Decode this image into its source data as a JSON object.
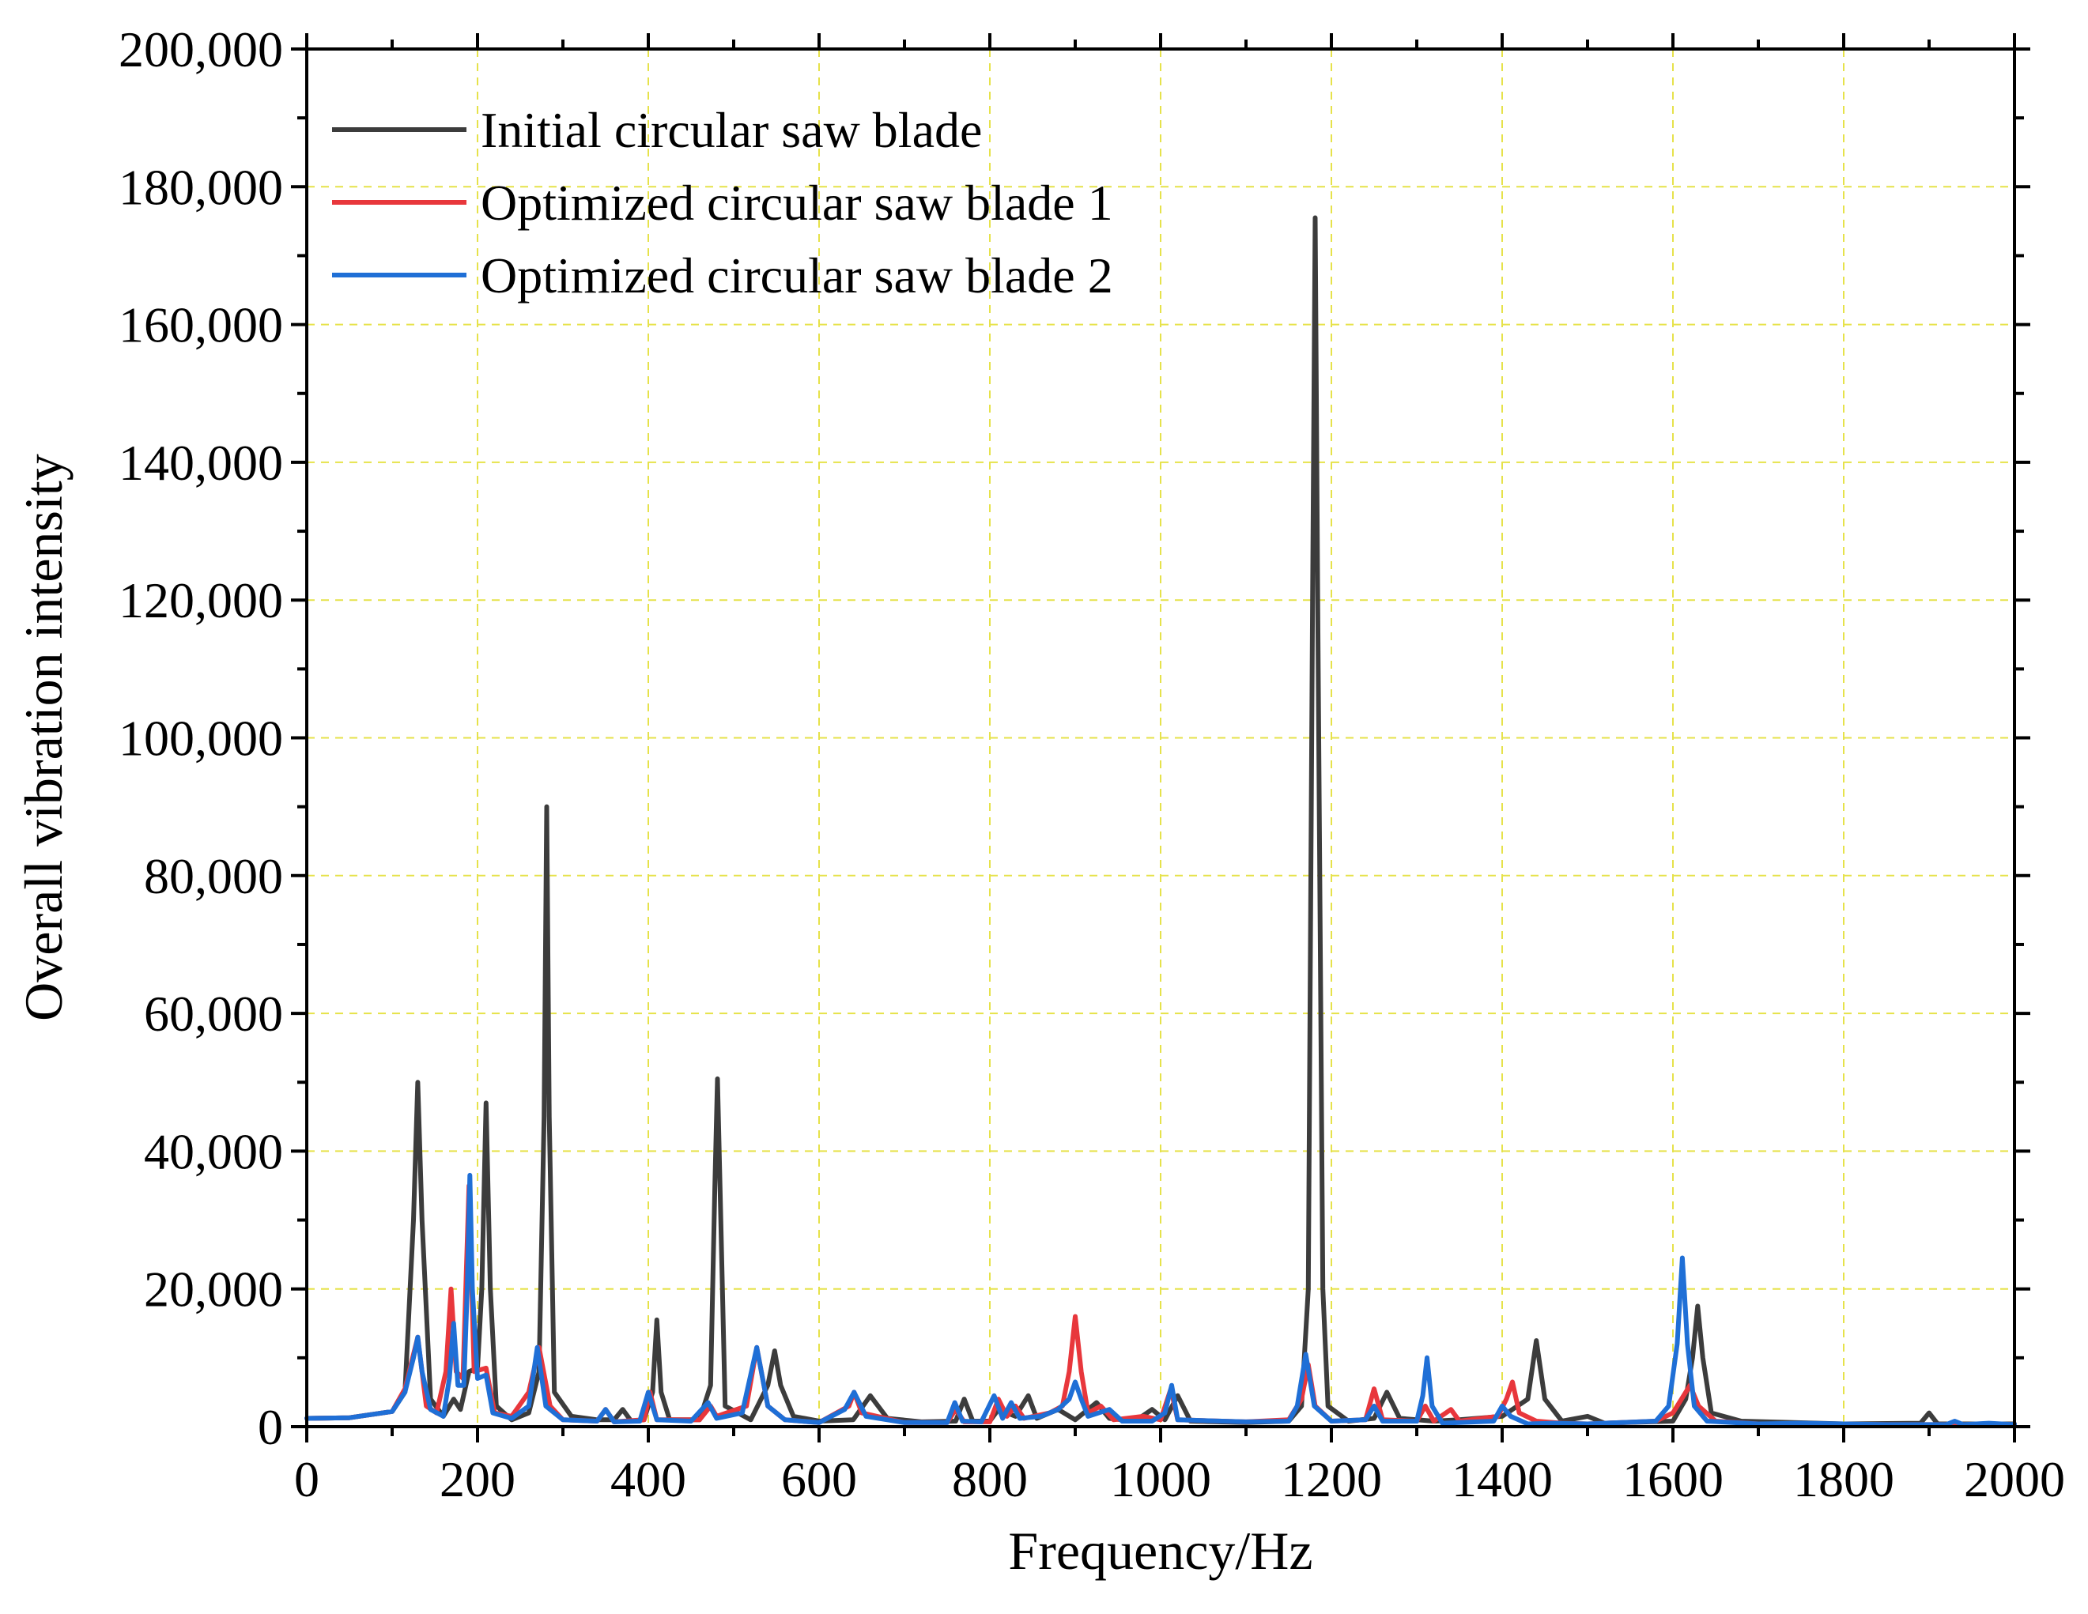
{
  "chart_data": {
    "type": "line",
    "title": "",
    "xlabel": "Frequency/Hz",
    "ylabel": "Overall vibration intensity",
    "xlim": [
      0,
      2000
    ],
    "ylim": [
      0,
      200000
    ],
    "x_ticks": [
      0,
      200,
      400,
      600,
      800,
      1000,
      1200,
      1400,
      1600,
      1800,
      2000
    ],
    "x_tick_labels": [
      "0",
      "200",
      "400",
      "600",
      "800",
      "1000",
      "1200",
      "1400",
      "1600",
      "1800",
      "2000"
    ],
    "y_ticks": [
      0,
      20000,
      40000,
      60000,
      80000,
      100000,
      120000,
      140000,
      160000,
      180000,
      200000
    ],
    "y_tick_labels": [
      "0",
      "20,000",
      "40,000",
      "60,000",
      "80,000",
      "100,000",
      "120,000",
      "140,000",
      "160,000",
      "180,000",
      "200,000"
    ],
    "grid": true,
    "legend_position": "top-left",
    "series": [
      {
        "name": "Initial circular saw blade",
        "color": "#3c3c3c",
        "points": [
          [
            0,
            1200
          ],
          [
            50,
            1300
          ],
          [
            100,
            2200
          ],
          [
            115,
            5000
          ],
          [
            125,
            30000
          ],
          [
            130,
            50000
          ],
          [
            135,
            30000
          ],
          [
            145,
            4000
          ],
          [
            160,
            1500
          ],
          [
            172,
            4000
          ],
          [
            180,
            2500
          ],
          [
            190,
            8000
          ],
          [
            200,
            8500
          ],
          [
            205,
            20000
          ],
          [
            210,
            47000
          ],
          [
            215,
            20000
          ],
          [
            222,
            3000
          ],
          [
            240,
            1000
          ],
          [
            260,
            2000
          ],
          [
            272,
            8000
          ],
          [
            278,
            45000
          ],
          [
            281,
            90000
          ],
          [
            284,
            45000
          ],
          [
            290,
            5000
          ],
          [
            310,
            1500
          ],
          [
            340,
            1000
          ],
          [
            360,
            1000
          ],
          [
            370,
            2500
          ],
          [
            380,
            800
          ],
          [
            395,
            1000
          ],
          [
            405,
            5000
          ],
          [
            410,
            15500
          ],
          [
            415,
            5000
          ],
          [
            425,
            1000
          ],
          [
            460,
            1000
          ],
          [
            473,
            6000
          ],
          [
            478,
            35000
          ],
          [
            481,
            50500
          ],
          [
            484,
            35000
          ],
          [
            490,
            3000
          ],
          [
            520,
            1000
          ],
          [
            540,
            6000
          ],
          [
            548,
            11000
          ],
          [
            555,
            6000
          ],
          [
            570,
            1500
          ],
          [
            600,
            800
          ],
          [
            640,
            1000
          ],
          [
            660,
            4500
          ],
          [
            680,
            1200
          ],
          [
            720,
            700
          ],
          [
            760,
            800
          ],
          [
            770,
            4000
          ],
          [
            780,
            800
          ],
          [
            800,
            800
          ],
          [
            810,
            2500
          ],
          [
            830,
            1500
          ],
          [
            845,
            4500
          ],
          [
            855,
            1200
          ],
          [
            880,
            2500
          ],
          [
            900,
            1000
          ],
          [
            925,
            3500
          ],
          [
            940,
            1200
          ],
          [
            970,
            800
          ],
          [
            990,
            2500
          ],
          [
            1005,
            1000
          ],
          [
            1020,
            4500
          ],
          [
            1035,
            800
          ],
          [
            1100,
            600
          ],
          [
            1150,
            800
          ],
          [
            1165,
            3000
          ],
          [
            1173,
            20000
          ],
          [
            1178,
            120000
          ],
          [
            1181,
            175500
          ],
          [
            1184,
            120000
          ],
          [
            1190,
            20000
          ],
          [
            1196,
            3000
          ],
          [
            1220,
            800
          ],
          [
            1250,
            1200
          ],
          [
            1265,
            5000
          ],
          [
            1280,
            1200
          ],
          [
            1320,
            800
          ],
          [
            1350,
            1000
          ],
          [
            1400,
            1500
          ],
          [
            1430,
            4000
          ],
          [
            1440,
            12500
          ],
          [
            1450,
            4000
          ],
          [
            1470,
            800
          ],
          [
            1500,
            1500
          ],
          [
            1520,
            500
          ],
          [
            1600,
            800
          ],
          [
            1615,
            4000
          ],
          [
            1623,
            10000
          ],
          [
            1629,
            17500
          ],
          [
            1635,
            10000
          ],
          [
            1645,
            2000
          ],
          [
            1680,
            800
          ],
          [
            1800,
            400
          ],
          [
            1890,
            500
          ],
          [
            1900,
            2000
          ],
          [
            1910,
            400
          ],
          [
            1950,
            400
          ],
          [
            2000,
            400
          ]
        ]
      },
      {
        "name": "Optimized circular saw blade 1",
        "color": "#e8373c",
        "points": [
          [
            0,
            1200
          ],
          [
            50,
            1300
          ],
          [
            100,
            2200
          ],
          [
            115,
            5500
          ],
          [
            130,
            13000
          ],
          [
            140,
            3000
          ],
          [
            152,
            2000
          ],
          [
            163,
            8000
          ],
          [
            169,
            20000
          ],
          [
            175,
            8000
          ],
          [
            183,
            7000
          ],
          [
            190,
            35000
          ],
          [
            196,
            8000
          ],
          [
            210,
            8500
          ],
          [
            220,
            2000
          ],
          [
            240,
            1500
          ],
          [
            260,
            5000
          ],
          [
            272,
            11500
          ],
          [
            285,
            3000
          ],
          [
            300,
            1000
          ],
          [
            340,
            800
          ],
          [
            350,
            2500
          ],
          [
            360,
            700
          ],
          [
            395,
            1000
          ],
          [
            402,
            5000
          ],
          [
            410,
            1000
          ],
          [
            460,
            1000
          ],
          [
            473,
            3000
          ],
          [
            480,
            1500
          ],
          [
            515,
            3000
          ],
          [
            527,
            11500
          ],
          [
            540,
            3000
          ],
          [
            560,
            1000
          ],
          [
            600,
            600
          ],
          [
            635,
            3000
          ],
          [
            641,
            5000
          ],
          [
            650,
            2000
          ],
          [
            700,
            600
          ],
          [
            750,
            600
          ],
          [
            760,
            2500
          ],
          [
            770,
            700
          ],
          [
            800,
            700
          ],
          [
            810,
            4000
          ],
          [
            820,
            1500
          ],
          [
            830,
            3000
          ],
          [
            840,
            1200
          ],
          [
            870,
            2000
          ],
          [
            885,
            3000
          ],
          [
            893,
            8000
          ],
          [
            900,
            16000
          ],
          [
            907,
            8000
          ],
          [
            915,
            2000
          ],
          [
            930,
            3000
          ],
          [
            945,
            1000
          ],
          [
            980,
            1500
          ],
          [
            1000,
            1000
          ],
          [
            1012,
            5500
          ],
          [
            1020,
            1000
          ],
          [
            1100,
            700
          ],
          [
            1150,
            1000
          ],
          [
            1165,
            4000
          ],
          [
            1173,
            9000
          ],
          [
            1181,
            3000
          ],
          [
            1200,
            800
          ],
          [
            1240,
            1000
          ],
          [
            1250,
            5500
          ],
          [
            1260,
            1000
          ],
          [
            1300,
            800
          ],
          [
            1310,
            3000
          ],
          [
            1320,
            800
          ],
          [
            1340,
            2500
          ],
          [
            1350,
            800
          ],
          [
            1395,
            1500
          ],
          [
            1405,
            4000
          ],
          [
            1412,
            6500
          ],
          [
            1420,
            2000
          ],
          [
            1440,
            800
          ],
          [
            1470,
            500
          ],
          [
            1500,
            400
          ],
          [
            1580,
            800
          ],
          [
            1600,
            2000
          ],
          [
            1620,
            6000
          ],
          [
            1630,
            3000
          ],
          [
            1650,
            800
          ],
          [
            1700,
            400
          ],
          [
            1750,
            400
          ],
          [
            1850,
            300
          ],
          [
            1930,
            300
          ],
          [
            1970,
            300
          ],
          [
            2000,
            300
          ]
        ]
      },
      {
        "name": "Optimized circular saw blade 2",
        "color": "#1f6fd6",
        "points": [
          [
            0,
            1200
          ],
          [
            50,
            1300
          ],
          [
            100,
            2200
          ],
          [
            115,
            5000
          ],
          [
            125,
            10000
          ],
          [
            130,
            13000
          ],
          [
            135,
            8000
          ],
          [
            145,
            2500
          ],
          [
            160,
            1500
          ],
          [
            167,
            7000
          ],
          [
            172,
            15000
          ],
          [
            177,
            6000
          ],
          [
            184,
            6000
          ],
          [
            188,
            20000
          ],
          [
            191,
            36500
          ],
          [
            194,
            20000
          ],
          [
            200,
            7000
          ],
          [
            210,
            7500
          ],
          [
            218,
            2000
          ],
          [
            240,
            1200
          ],
          [
            260,
            3000
          ],
          [
            270,
            11500
          ],
          [
            280,
            3000
          ],
          [
            300,
            1000
          ],
          [
            340,
            800
          ],
          [
            350,
            2500
          ],
          [
            360,
            700
          ],
          [
            390,
            800
          ],
          [
            400,
            5000
          ],
          [
            410,
            1000
          ],
          [
            450,
            800
          ],
          [
            470,
            3500
          ],
          [
            480,
            1200
          ],
          [
            510,
            2000
          ],
          [
            527,
            11500
          ],
          [
            540,
            3000
          ],
          [
            560,
            1000
          ],
          [
            600,
            600
          ],
          [
            630,
            2500
          ],
          [
            641,
            5000
          ],
          [
            655,
            1500
          ],
          [
            700,
            600
          ],
          [
            750,
            600
          ],
          [
            759,
            3500
          ],
          [
            768,
            800
          ],
          [
            790,
            700
          ],
          [
            805,
            4500
          ],
          [
            815,
            1200
          ],
          [
            825,
            3500
          ],
          [
            835,
            1200
          ],
          [
            860,
            1500
          ],
          [
            880,
            2500
          ],
          [
            893,
            4000
          ],
          [
            900,
            6500
          ],
          [
            907,
            4000
          ],
          [
            915,
            1500
          ],
          [
            940,
            2500
          ],
          [
            955,
            800
          ],
          [
            990,
            800
          ],
          [
            1005,
            2000
          ],
          [
            1013,
            6000
          ],
          [
            1020,
            1000
          ],
          [
            1100,
            700
          ],
          [
            1150,
            800
          ],
          [
            1160,
            3000
          ],
          [
            1170,
            10500
          ],
          [
            1180,
            3000
          ],
          [
            1200,
            800
          ],
          [
            1240,
            1000
          ],
          [
            1250,
            3000
          ],
          [
            1260,
            800
          ],
          [
            1300,
            800
          ],
          [
            1307,
            4500
          ],
          [
            1312,
            10000
          ],
          [
            1318,
            3000
          ],
          [
            1330,
            500
          ],
          [
            1390,
            800
          ],
          [
            1400,
            3000
          ],
          [
            1410,
            1500
          ],
          [
            1430,
            400
          ],
          [
            1460,
            500
          ],
          [
            1500,
            400
          ],
          [
            1580,
            800
          ],
          [
            1595,
            3000
          ],
          [
            1605,
            12000
          ],
          [
            1611,
            24500
          ],
          [
            1617,
            12000
          ],
          [
            1625,
            3000
          ],
          [
            1640,
            800
          ],
          [
            1700,
            400
          ],
          [
            1750,
            500
          ],
          [
            1850,
            300
          ],
          [
            1920,
            300
          ],
          [
            1930,
            800
          ],
          [
            1940,
            300
          ],
          [
            1970,
            500
          ],
          [
            2000,
            300
          ]
        ]
      }
    ]
  }
}
